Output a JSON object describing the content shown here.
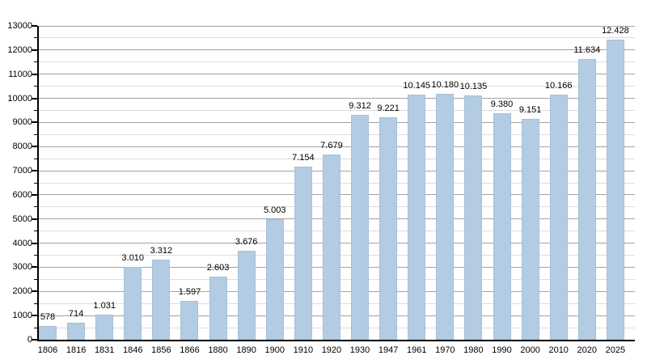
{
  "chart_data": {
    "type": "bar",
    "title": "",
    "xlabel": "",
    "ylabel": "",
    "ylim": [
      0,
      13000
    ],
    "y_major_step": 1000,
    "y_minor_step": 500,
    "grid": true,
    "legend": "none",
    "colors": {
      "bar_fill": "#b3cce3",
      "bar_border": "#a6c0d8",
      "major_grid": "#a3a3a3",
      "minor_grid": "#dcdcdc",
      "axis": "#000000",
      "text": "#000000",
      "background": "#ffffff"
    },
    "categories": [
      "1806",
      "1816",
      "1831",
      "1846",
      "1856",
      "1866",
      "1880",
      "1890",
      "1900",
      "1910",
      "1920",
      "1930",
      "1947",
      "1961",
      "1970",
      "1980",
      "1990",
      "2000",
      "2010",
      "2020",
      "2025"
    ],
    "values": [
      578,
      714,
      1031,
      3010,
      3312,
      1597,
      2603,
      3676,
      5003,
      7154,
      7679,
      9312,
      9221,
      10145,
      10180,
      10135,
      9380,
      9151,
      10166,
      11634,
      12428
    ],
    "value_labels": [
      "578",
      "714",
      "1.031",
      "3.010",
      "3.312",
      "1.597",
      "2.603",
      "3.676",
      "5.003",
      "7.154",
      "7.679",
      "9.312",
      "9.221",
      "10.145",
      "10.180",
      "10.135",
      "9.380",
      "9.151",
      "10.166",
      "11.634",
      "12.428"
    ],
    "y_tick_labels": [
      "0",
      "1000",
      "2000",
      "3000",
      "4000",
      "5000",
      "6000",
      "7000",
      "8000",
      "9000",
      "10000",
      "11000",
      "12000",
      "13000"
    ]
  }
}
